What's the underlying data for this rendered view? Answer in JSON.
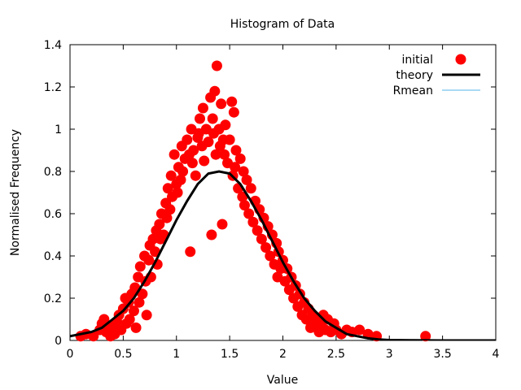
{
  "chart_data": {
    "type": "scatter",
    "title": "Histogram of Data",
    "xlabel": "Value",
    "ylabel": "Normalised Frequency",
    "xlim": [
      0,
      4
    ],
    "ylim": [
      0,
      1.4
    ],
    "xticks": [
      0,
      0.5,
      1,
      1.5,
      2,
      2.5,
      3,
      3.5,
      4
    ],
    "xtick_labels": [
      "0",
      "0.5",
      "1",
      "1.5",
      "2",
      "2.5",
      "3",
      "3.5",
      "4"
    ],
    "yticks": [
      0,
      0.2,
      0.4,
      0.6,
      0.8,
      1,
      1.2,
      1.4
    ],
    "ytick_labels": [
      "0",
      "0.2",
      "0.4",
      "0.6",
      "0.8",
      "1",
      "1.2",
      "1.4"
    ],
    "grid": false,
    "legend_position": "top-right",
    "series": [
      {
        "name": "initial",
        "style": "points",
        "color": "#ff0000",
        "points": [
          [
            0.1,
            0.02
          ],
          [
            0.15,
            0.03
          ],
          [
            0.22,
            0.02
          ],
          [
            0.28,
            0.05
          ],
          [
            0.3,
            0.08
          ],
          [
            0.32,
            0.1
          ],
          [
            0.34,
            0.04
          ],
          [
            0.36,
            0.06
          ],
          [
            0.38,
            0.02
          ],
          [
            0.4,
            0.07
          ],
          [
            0.42,
            0.03
          ],
          [
            0.44,
            0.09
          ],
          [
            0.46,
            0.12
          ],
          [
            0.48,
            0.05
          ],
          [
            0.5,
            0.15
          ],
          [
            0.52,
            0.2
          ],
          [
            0.53,
            0.08
          ],
          [
            0.55,
            0.18
          ],
          [
            0.56,
            0.1
          ],
          [
            0.58,
            0.22
          ],
          [
            0.6,
            0.14
          ],
          [
            0.61,
            0.25
          ],
          [
            0.62,
            0.06
          ],
          [
            0.64,
            0.3
          ],
          [
            0.65,
            0.18
          ],
          [
            0.66,
            0.35
          ],
          [
            0.68,
            0.22
          ],
          [
            0.7,
            0.4
          ],
          [
            0.71,
            0.28
          ],
          [
            0.72,
            0.12
          ],
          [
            0.74,
            0.38
          ],
          [
            0.75,
            0.45
          ],
          [
            0.76,
            0.3
          ],
          [
            0.78,
            0.48
          ],
          [
            0.8,
            0.42
          ],
          [
            0.81,
            0.52
          ],
          [
            0.82,
            0.36
          ],
          [
            0.84,
            0.55
          ],
          [
            0.85,
            0.48
          ],
          [
            0.86,
            0.6
          ],
          [
            0.88,
            0.5
          ],
          [
            0.9,
            0.65
          ],
          [
            0.91,
            0.58
          ],
          [
            0.92,
            0.72
          ],
          [
            0.94,
            0.62
          ],
          [
            0.95,
            0.78
          ],
          [
            0.96,
            0.68
          ],
          [
            0.98,
            0.88
          ],
          [
            1.0,
            0.74
          ],
          [
            1.01,
            0.7
          ],
          [
            1.02,
            0.82
          ],
          [
            1.04,
            0.76
          ],
          [
            1.05,
            0.92
          ],
          [
            1.06,
            0.8
          ],
          [
            1.08,
            0.86
          ],
          [
            1.1,
            0.95
          ],
          [
            1.12,
            0.88
          ],
          [
            1.13,
            0.42
          ],
          [
            1.14,
            1.0
          ],
          [
            1.15,
            0.84
          ],
          [
            1.16,
            0.9
          ],
          [
            1.18,
            0.78
          ],
          [
            1.2,
            0.96
          ],
          [
            1.21,
            0.98
          ],
          [
            1.22,
            1.05
          ],
          [
            1.24,
            0.92
          ],
          [
            1.25,
            1.1
          ],
          [
            1.26,
            0.85
          ],
          [
            1.28,
            1.0
          ],
          [
            1.3,
            0.94
          ],
          [
            1.32,
            1.15
          ],
          [
            1.33,
            0.5
          ],
          [
            1.34,
            1.05
          ],
          [
            1.35,
            0.98
          ],
          [
            1.36,
            1.18
          ],
          [
            1.37,
            0.88
          ],
          [
            1.38,
            1.3
          ],
          [
            1.4,
            1.0
          ],
          [
            1.41,
            0.92
          ],
          [
            1.42,
            1.12
          ],
          [
            1.43,
            0.55
          ],
          [
            1.44,
            0.95
          ],
          [
            1.45,
            0.88
          ],
          [
            1.46,
            1.02
          ],
          [
            1.48,
            0.84
          ],
          [
            1.5,
            0.95
          ],
          [
            1.52,
            1.13
          ],
          [
            1.53,
            0.78
          ],
          [
            1.54,
            1.08
          ],
          [
            1.55,
            0.82
          ],
          [
            1.56,
            0.9
          ],
          [
            1.58,
            0.72
          ],
          [
            1.6,
            0.86
          ],
          [
            1.62,
            0.68
          ],
          [
            1.63,
            0.8
          ],
          [
            1.64,
            0.64
          ],
          [
            1.66,
            0.76
          ],
          [
            1.68,
            0.6
          ],
          [
            1.7,
            0.72
          ],
          [
            1.72,
            0.56
          ],
          [
            1.74,
            0.66
          ],
          [
            1.76,
            0.52
          ],
          [
            1.78,
            0.62
          ],
          [
            1.8,
            0.48
          ],
          [
            1.82,
            0.58
          ],
          [
            1.84,
            0.44
          ],
          [
            1.86,
            0.54
          ],
          [
            1.88,
            0.4
          ],
          [
            1.9,
            0.5
          ],
          [
            1.92,
            0.36
          ],
          [
            1.94,
            0.46
          ],
          [
            1.95,
            0.3
          ],
          [
            1.96,
            0.42
          ],
          [
            1.98,
            0.34
          ],
          [
            2.0,
            0.38
          ],
          [
            2.02,
            0.28
          ],
          [
            2.04,
            0.34
          ],
          [
            2.06,
            0.24
          ],
          [
            2.08,
            0.3
          ],
          [
            2.1,
            0.2
          ],
          [
            2.12,
            0.26
          ],
          [
            2.14,
            0.16
          ],
          [
            2.16,
            0.22
          ],
          [
            2.18,
            0.12
          ],
          [
            2.2,
            0.18
          ],
          [
            2.22,
            0.1
          ],
          [
            2.24,
            0.15
          ],
          [
            2.26,
            0.06
          ],
          [
            2.28,
            0.12
          ],
          [
            2.3,
            0.08
          ],
          [
            2.32,
            0.1
          ],
          [
            2.34,
            0.04
          ],
          [
            2.36,
            0.08
          ],
          [
            2.38,
            0.12
          ],
          [
            2.4,
            0.05
          ],
          [
            2.42,
            0.1
          ],
          [
            2.45,
            0.04
          ],
          [
            2.48,
            0.08
          ],
          [
            2.5,
            0.05
          ],
          [
            2.55,
            0.03
          ],
          [
            2.6,
            0.05
          ],
          [
            2.65,
            0.04
          ],
          [
            2.72,
            0.05
          ],
          [
            2.8,
            0.03
          ],
          [
            2.88,
            0.02
          ],
          [
            3.34,
            0.02
          ]
        ]
      },
      {
        "name": "theory",
        "style": "line",
        "color": "#000000",
        "points": [
          [
            0.0,
            0.02
          ],
          [
            0.1,
            0.03
          ],
          [
            0.2,
            0.04
          ],
          [
            0.3,
            0.06
          ],
          [
            0.4,
            0.1
          ],
          [
            0.5,
            0.14
          ],
          [
            0.6,
            0.2
          ],
          [
            0.7,
            0.28
          ],
          [
            0.8,
            0.37
          ],
          [
            0.9,
            0.47
          ],
          [
            1.0,
            0.57
          ],
          [
            1.1,
            0.66
          ],
          [
            1.2,
            0.74
          ],
          [
            1.3,
            0.79
          ],
          [
            1.4,
            0.8
          ],
          [
            1.5,
            0.79
          ],
          [
            1.6,
            0.74
          ],
          [
            1.7,
            0.66
          ],
          [
            1.8,
            0.57
          ],
          [
            1.9,
            0.47
          ],
          [
            2.0,
            0.37
          ],
          [
            2.1,
            0.28
          ],
          [
            2.2,
            0.2
          ],
          [
            2.3,
            0.14
          ],
          [
            2.4,
            0.09
          ],
          [
            2.5,
            0.06
          ],
          [
            2.6,
            0.03
          ],
          [
            2.7,
            0.02
          ],
          [
            2.8,
            0.01
          ],
          [
            2.9,
            0.005
          ],
          [
            3.0,
            0.002
          ],
          [
            3.2,
            0.001
          ],
          [
            3.5,
            0.0
          ],
          [
            4.0,
            0.0
          ]
        ]
      },
      {
        "name": "Rmean",
        "style": "line",
        "color": "#56b4e9",
        "points": []
      }
    ]
  }
}
